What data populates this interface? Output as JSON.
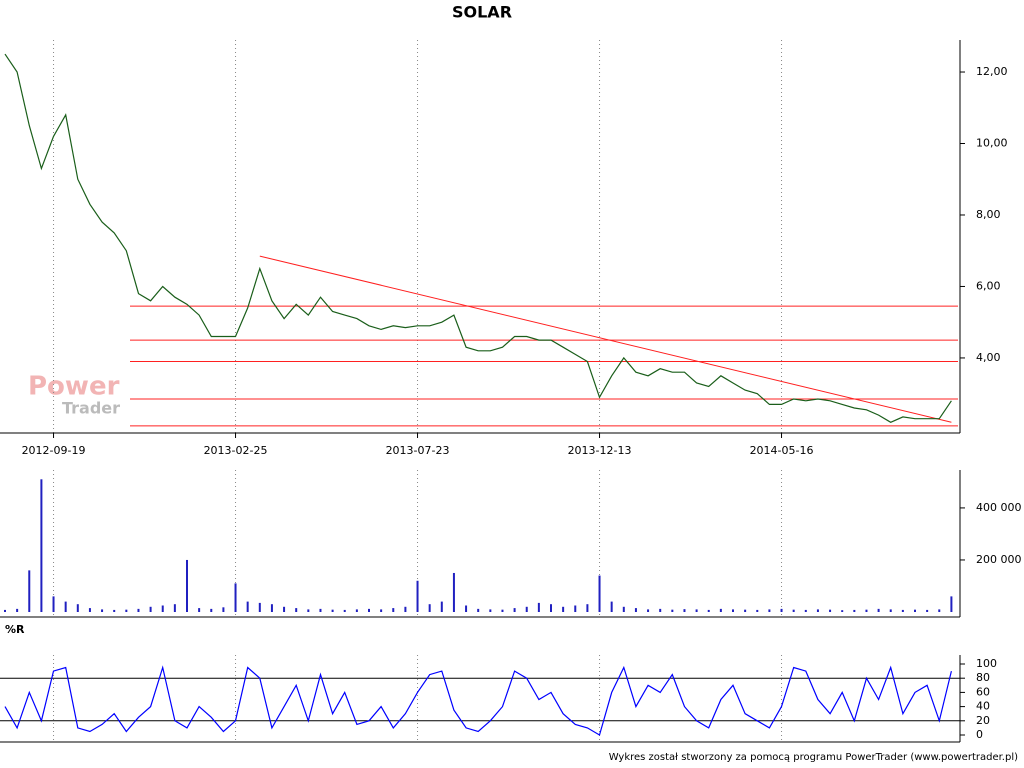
{
  "chart_data": [
    {
      "type": "line",
      "title": "SOLAR",
      "watermark": [
        "Power",
        "Trader"
      ],
      "categories": [
        null,
        null,
        null,
        null,
        "2012-09-19",
        null,
        null,
        null,
        null,
        null,
        null,
        null,
        null,
        null,
        null,
        null,
        null,
        null,
        null,
        "2013-02-25",
        null,
        null,
        null,
        null,
        null,
        null,
        null,
        null,
        null,
        null,
        null,
        null,
        null,
        null,
        "2013-07-23",
        null,
        null,
        null,
        null,
        null,
        null,
        null,
        null,
        null,
        null,
        null,
        null,
        null,
        null,
        "2013-12-13",
        null,
        null,
        null,
        null,
        null,
        null,
        null,
        null,
        null,
        null,
        null,
        null,
        null,
        null,
        "2014-05-16",
        null,
        null,
        null,
        null,
        null,
        null,
        null,
        null,
        null,
        null,
        null,
        null,
        null,
        null
      ],
      "values": [
        12.5,
        12.0,
        10.5,
        9.3,
        10.2,
        10.8,
        9.0,
        8.3,
        7.8,
        7.5,
        7.0,
        5.8,
        5.6,
        6.0,
        5.7,
        5.5,
        5.2,
        4.6,
        4.6,
        4.6,
        5.4,
        6.5,
        5.6,
        5.1,
        5.5,
        5.2,
        5.7,
        5.3,
        5.2,
        5.1,
        4.9,
        4.8,
        4.9,
        4.85,
        4.9,
        4.9,
        5.0,
        5.2,
        4.3,
        4.2,
        4.2,
        4.3,
        4.6,
        4.6,
        4.5,
        4.5,
        4.3,
        4.1,
        3.9,
        2.9,
        3.5,
        4.0,
        3.6,
        3.5,
        3.7,
        3.6,
        3.6,
        3.3,
        3.2,
        3.5,
        3.3,
        3.1,
        3.0,
        2.7,
        2.7,
        2.85,
        2.8,
        2.85,
        2.8,
        2.7,
        2.6,
        2.55,
        2.4,
        2.2,
        2.35,
        2.3,
        2.3,
        2.3,
        2.8
      ],
      "color": "#1a5e1a",
      "ylim": [
        1.9,
        12.7
      ],
      "yticks": [
        {
          "value": 4,
          "label": "4,00"
        },
        {
          "value": 6,
          "label": "6,00"
        },
        {
          "value": 8,
          "label": "8,00"
        },
        {
          "value": 10,
          "label": "10,00"
        },
        {
          "value": 12,
          "label": "12,00"
        }
      ],
      "levels": [
        5.45,
        4.5,
        3.9,
        2.85,
        2.1
      ],
      "level_color": "#ff2020",
      "trendline": {
        "x": [
          21,
          78
        ],
        "y": [
          6.85,
          2.2
        ]
      }
    },
    {
      "type": "bar",
      "values": [
        8000,
        12000,
        160000,
        510000,
        60000,
        40000,
        30000,
        15000,
        10000,
        8000,
        9000,
        12000,
        20000,
        25000,
        30000,
        200000,
        15000,
        12000,
        18000,
        110000,
        40000,
        35000,
        30000,
        20000,
        15000,
        10000,
        12000,
        9000,
        8000,
        10000,
        12000,
        10000,
        15000,
        20000,
        120000,
        30000,
        40000,
        150000,
        25000,
        12000,
        10000,
        9000,
        15000,
        20000,
        35000,
        30000,
        20000,
        25000,
        30000,
        140000,
        40000,
        20000,
        15000,
        10000,
        12000,
        9000,
        11000,
        10000,
        8000,
        12000,
        10000,
        9000,
        8000,
        10000,
        12000,
        9000,
        8000,
        10000,
        9000,
        7000,
        8000,
        9000,
        12000,
        10000,
        8000,
        9000,
        8000,
        10000,
        60000
      ],
      "color": "#2020c0",
      "ylim": [
        0,
        515000
      ],
      "yticks": [
        {
          "value": 200000,
          "label": "200 000"
        },
        {
          "value": 400000,
          "label": "400 000"
        }
      ]
    },
    {
      "type": "line",
      "title": "%R",
      "values": [
        40,
        10,
        60,
        20,
        90,
        95,
        10,
        5,
        15,
        30,
        5,
        25,
        40,
        95,
        20,
        10,
        40,
        25,
        5,
        20,
        95,
        80,
        10,
        40,
        70,
        20,
        85,
        30,
        60,
        15,
        20,
        40,
        10,
        30,
        60,
        85,
        90,
        35,
        10,
        5,
        20,
        40,
        90,
        80,
        50,
        60,
        30,
        15,
        10,
        0,
        60,
        95,
        40,
        70,
        60,
        85,
        40,
        20,
        10,
        50,
        70,
        30,
        20,
        10,
        40,
        95,
        90,
        50,
        30,
        60,
        20,
        80,
        50,
        95,
        30,
        60,
        70,
        20,
        90
      ],
      "color": "#0000ff",
      "ylim": [
        0,
        100
      ],
      "yticks": [
        0,
        20,
        40,
        60,
        80,
        100
      ],
      "hlines": [
        20,
        80
      ]
    }
  ],
  "footer": "Wykres został stworzony za pomocą programu PowerTrader (www.powertrader.pl)"
}
